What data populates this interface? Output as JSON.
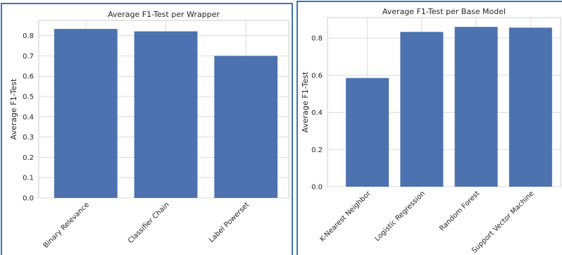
{
  "chart_data": [
    {
      "type": "bar",
      "title": "Average F1-Test per Wrapper",
      "xlabel": "",
      "ylabel": "Average F1-Test",
      "categories": [
        "Binary Relevance",
        "Classifier Chain",
        "Label Powerset"
      ],
      "values": [
        0.833,
        0.821,
        0.7
      ],
      "ylim": [
        0,
        0.875
      ],
      "yticks": [
        0.0,
        0.1,
        0.2,
        0.3,
        0.4,
        0.5,
        0.6,
        0.7,
        0.8
      ],
      "ytick_labels": [
        "0.0",
        "0.1",
        "0.2",
        "0.3",
        "0.4",
        "0.5",
        "0.6",
        "0.7",
        "0.8"
      ],
      "grid": true,
      "bar_color": "#4c72b0"
    },
    {
      "type": "bar",
      "title": "Average F1-Test per Base Model",
      "xlabel": "",
      "ylabel": "Average F1-Test",
      "categories": [
        "K-Nearest Neighbor",
        "Logistic Regression",
        "Random Forest",
        "Support Vector Machine"
      ],
      "values": [
        0.585,
        0.833,
        0.86,
        0.856
      ],
      "ylim": [
        0,
        0.91
      ],
      "yticks": [
        0.0,
        0.2,
        0.4,
        0.6,
        0.8
      ],
      "ytick_labels": [
        "0.0",
        "0.2",
        "0.4",
        "0.6",
        "0.8"
      ],
      "grid": true,
      "bar_color": "#4c72b0"
    }
  ]
}
